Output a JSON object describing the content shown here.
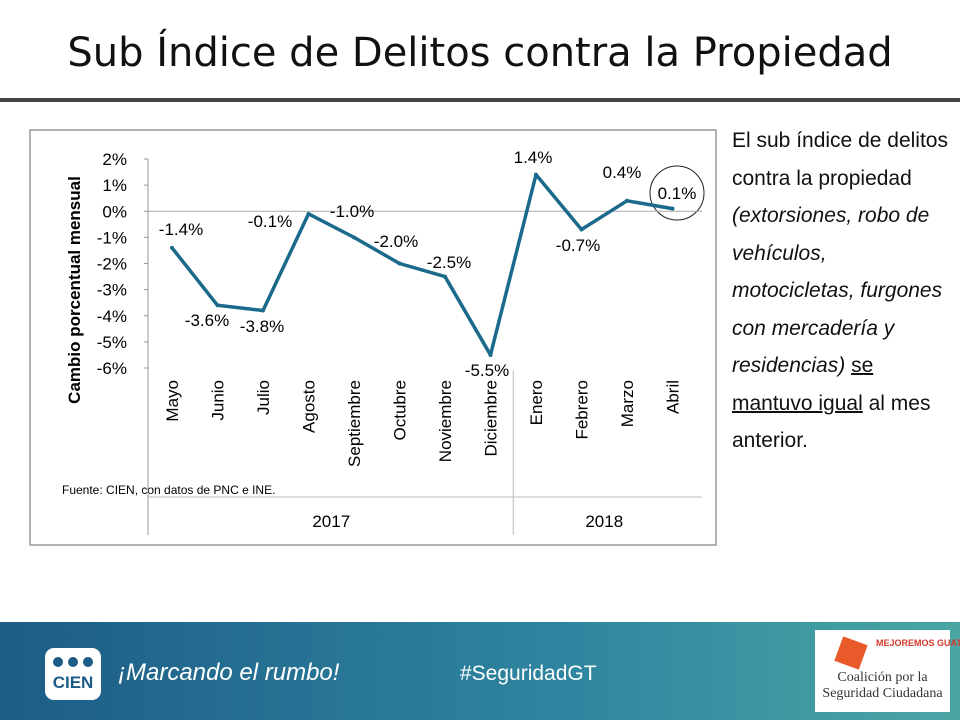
{
  "title": "Sub Índice de Delitos contra la Propiedad",
  "chart_data": {
    "type": "line",
    "y_label": "Cambio porcentual mensual",
    "groups": [
      {
        "label": "2017",
        "categories": [
          "Mayo",
          "Junio",
          "Julio",
          "Agosto",
          "Septiembre",
          "Octubre",
          "Noviembre",
          "Diciembre"
        ]
      },
      {
        "label": "2018",
        "categories": [
          "Enero",
          "Febrero",
          "Marzo",
          "Abril"
        ]
      }
    ],
    "values": [
      -1.4,
      -3.6,
      -3.8,
      -0.1,
      -1.0,
      -2.0,
      -2.5,
      -5.5,
      1.4,
      -0.7,
      0.4,
      0.1
    ],
    "value_labels": [
      "-1.4%",
      "-3.6%",
      "-3.8%",
      "-0.1%",
      "-1.0%",
      "-2.0%",
      "-2.5%",
      "-5.5%",
      "1.4%",
      "-0.7%",
      "0.4%",
      "0.1%"
    ],
    "color": "#1b6a8c",
    "ylim": [
      -6,
      2
    ],
    "yticks": [
      {
        "value": 2,
        "label": "2%"
      },
      {
        "value": 1,
        "label": "1%"
      },
      {
        "value": 0,
        "label": "0%"
      },
      {
        "value": -1,
        "label": "-1%"
      },
      {
        "value": -2,
        "label": "-2%"
      },
      {
        "value": -3,
        "label": "-3%"
      },
      {
        "value": -4,
        "label": "-4%"
      },
      {
        "value": -5,
        "label": "-5%"
      },
      {
        "value": -6,
        "label": "-6%"
      }
    ],
    "source": "Fuente: CIEN, con datos de PNC e INE."
  },
  "side_text": {
    "intro": "El sub índice de delitos contra la propiedad",
    "detail": "(extorsiones, robo de vehículos, motocicletas, furgones con mercadería y residencias)",
    "emphasis": "se mantuvo igual",
    "ending": "al mes anterior."
  },
  "footer": {
    "logo": "CIEN",
    "tagline": "¡Marcando el rumbo!",
    "hashtag": "#SeguridadGT",
    "partner_top": "MEJOREMOS GUATE",
    "partner_name": "Coalición por la Seguridad Ciudadana"
  }
}
